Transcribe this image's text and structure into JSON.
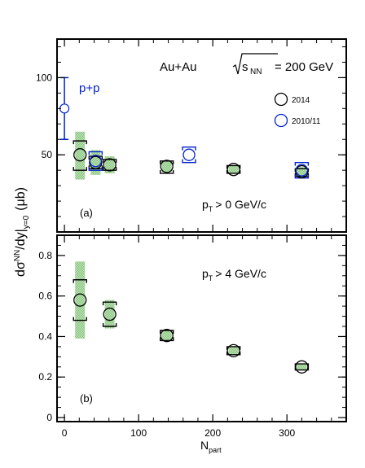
{
  "chart_data": {
    "type": "scatter",
    "x_axis": {
      "label_main": "N",
      "label_sub": "part",
      "range": [
        -10,
        380
      ],
      "ticks": [
        0,
        100,
        200,
        300
      ]
    },
    "y_axis_title": {
      "pre": "dσ",
      "sup": "NN",
      "mid": "/dy|",
      "sub": "y=0",
      "unit": "(μb)"
    },
    "colors": {
      "run2014": "#000000",
      "run2010": "#0022cc",
      "syst_fill": "#a7d7a0",
      "frame": "#000000"
    },
    "panels": [
      {
        "id": "a",
        "label": "(a)",
        "condition_main": "p",
        "condition_sub": "T",
        "condition_rest": "> 0 GeV/c",
        "system": {
          "pre": "Au+Au ",
          "root": "s",
          "root_sub": "NN",
          "post": " = 200 GeV"
        },
        "ylim": [
          0,
          125
        ],
        "yticks": [
          50,
          100
        ],
        "legend": [
          {
            "label": "2014",
            "series": "run2014"
          },
          {
            "label": "2010/11",
            "series": "run2010"
          }
        ],
        "pp_reference": {
          "label": "p+p",
          "x": 0,
          "y": 80,
          "err_low": 60,
          "err_high": 100
        },
        "series": [
          {
            "name": "2014",
            "key": "run2014",
            "points": [
              {
                "x": 21,
                "y": 50,
                "sys_low": 40,
                "sys_high": 59,
                "band_low": 34,
                "band_high": 65
              },
              {
                "x": 42,
                "y": 45,
                "sys_low": 41,
                "sys_high": 49,
                "band_low": 37,
                "band_high": 53
              },
              {
                "x": 61,
                "y": 43.5,
                "sys_low": 40,
                "sys_high": 47,
                "band_low": 38,
                "band_high": 49
              },
              {
                "x": 138,
                "y": 42.5,
                "sys_low": 38,
                "sys_high": 46,
                "band_low": 39,
                "band_high": 46
              },
              {
                "x": 228,
                "y": 40.5,
                "sys_low": 38,
                "sys_high": 43,
                "band_low": 38,
                "band_high": 43
              },
              {
                "x": 320,
                "y": 39,
                "sys_low": 36,
                "sys_high": 41,
                "band_low": 36,
                "band_high": 42
              }
            ]
          },
          {
            "name": "2010/11",
            "key": "run2010",
            "points": [
              {
                "x": 42,
                "y": 46,
                "sys_low": 40,
                "sys_high": 52
              },
              {
                "x": 168,
                "y": 50,
                "sys_low": 45,
                "sys_high": 55
              },
              {
                "x": 320,
                "y": 40,
                "sys_low": 35,
                "sys_high": 45
              }
            ]
          }
        ]
      },
      {
        "id": "b",
        "label": "(b)",
        "condition_main": "p",
        "condition_sub": "T",
        "condition_rest": "> 4 GeV/c",
        "ylim": [
          -0.02,
          0.9
        ],
        "yticks": [
          0,
          0.2,
          0.4,
          0.6,
          0.8
        ],
        "ytick_labels": [
          "0",
          "0.2",
          "0.4",
          "0.6",
          "0.8"
        ],
        "series": [
          {
            "name": "2014",
            "key": "run2014",
            "points": [
              {
                "x": 21,
                "y": 0.58,
                "sys_low": 0.48,
                "sys_high": 0.68,
                "band_low": 0.39,
                "band_high": 0.77
              },
              {
                "x": 61,
                "y": 0.51,
                "sys_low": 0.45,
                "sys_high": 0.57,
                "band_low": 0.44,
                "band_high": 0.58
              },
              {
                "x": 138,
                "y": 0.405,
                "sys_low": 0.38,
                "sys_high": 0.43,
                "band_low": 0.38,
                "band_high": 0.43
              },
              {
                "x": 228,
                "y": 0.33,
                "sys_low": 0.31,
                "sys_high": 0.35,
                "band_low": 0.31,
                "band_high": 0.35
              },
              {
                "x": 320,
                "y": 0.25,
                "sys_low": 0.235,
                "sys_high": 0.265,
                "band_low": 0.235,
                "band_high": 0.265
              }
            ]
          }
        ]
      }
    ]
  }
}
